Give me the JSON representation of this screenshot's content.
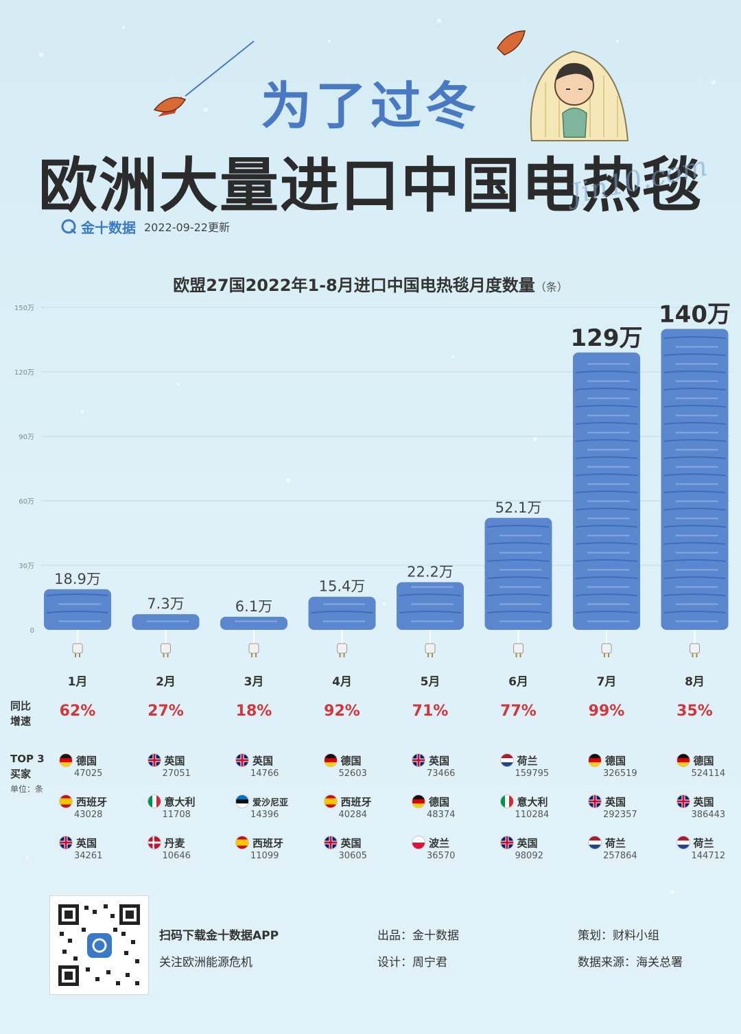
{
  "headline": "为了过冬",
  "title": "欧洲大量进口中国电热毯",
  "brand": {
    "name": "金十数据",
    "update": "2022-09-22更新",
    "watermark": "Jin10.com"
  },
  "chart_title": "欧盟27国2022年1-8月进口中国电热毯月度数量",
  "chart_unit": "（条）",
  "row_labels": {
    "yoy": [
      "同比",
      "增速"
    ],
    "top3": [
      "TOP 3",
      "买家"
    ],
    "unit": "单位：条"
  },
  "chart_data": {
    "type": "bar",
    "categories": [
      "1月",
      "2月",
      "3月",
      "4月",
      "5月",
      "6月",
      "7月",
      "8月"
    ],
    "values": [
      189000,
      73000,
      61000,
      154000,
      222000,
      521000,
      1290000,
      1400000
    ],
    "data_labels": [
      "18.9万",
      "7.3万",
      "6.1万",
      "15.4万",
      "22.2万",
      "52.1万",
      "129万",
      "140万"
    ],
    "yticks": [
      "0",
      "30万",
      "60万",
      "90万",
      "120万",
      "150万"
    ],
    "ytick_values": [
      0,
      300000,
      600000,
      900000,
      1200000,
      1500000
    ],
    "ylim": [
      0,
      1500000
    ],
    "grid": true,
    "bar_color": "#5b87cf",
    "yoy_growth": [
      "62%",
      "27%",
      "18%",
      "92%",
      "71%",
      "77%",
      "99%",
      "35%"
    ],
    "top3_buyers": [
      [
        {
          "country": "德国",
          "value": "47025",
          "flag": "de"
        },
        {
          "country": "西班牙",
          "value": "43028",
          "flag": "es"
        },
        {
          "country": "英国",
          "value": "34261",
          "flag": "gb"
        }
      ],
      [
        {
          "country": "英国",
          "value": "27051",
          "flag": "gb"
        },
        {
          "country": "意大利",
          "value": "11708",
          "flag": "it"
        },
        {
          "country": "丹麦",
          "value": "10646",
          "flag": "dk"
        }
      ],
      [
        {
          "country": "英国",
          "value": "14766",
          "flag": "gb"
        },
        {
          "country": "爱沙尼亚",
          "value": "14396",
          "flag": "ee"
        },
        {
          "country": "西班牙",
          "value": "11099",
          "flag": "es"
        }
      ],
      [
        {
          "country": "德国",
          "value": "52603",
          "flag": "de"
        },
        {
          "country": "西班牙",
          "value": "40284",
          "flag": "es"
        },
        {
          "country": "英国",
          "value": "30605",
          "flag": "gb"
        }
      ],
      [
        {
          "country": "英国",
          "value": "73466",
          "flag": "gb"
        },
        {
          "country": "德国",
          "value": "48374",
          "flag": "de"
        },
        {
          "country": "波兰",
          "value": "36570",
          "flag": "pl"
        }
      ],
      [
        {
          "country": "荷兰",
          "value": "159795",
          "flag": "nl"
        },
        {
          "country": "意大利",
          "value": "110284",
          "flag": "it"
        },
        {
          "country": "英国",
          "value": "98092",
          "flag": "gb"
        }
      ],
      [
        {
          "country": "德国",
          "value": "326519",
          "flag": "de"
        },
        {
          "country": "英国",
          "value": "292357",
          "flag": "gb"
        },
        {
          "country": "荷兰",
          "value": "257864",
          "flag": "nl"
        }
      ],
      [
        {
          "country": "德国",
          "value": "524114",
          "flag": "de"
        },
        {
          "country": "英国",
          "value": "386443",
          "flag": "gb"
        },
        {
          "country": "荷兰",
          "value": "144712",
          "flag": "nl"
        }
      ]
    ]
  },
  "footer": {
    "scan": "扫码下载金十数据APP",
    "follow": "关注欧洲能源危机",
    "producer": "出品：金十数据",
    "designer": "设计：周宁君",
    "planner": "策划：财料小组",
    "source": "数据来源：海关总署"
  },
  "colors": {
    "headline": "#4a79c4",
    "growth": "#d1363a",
    "brand": "#3a78c9"
  }
}
